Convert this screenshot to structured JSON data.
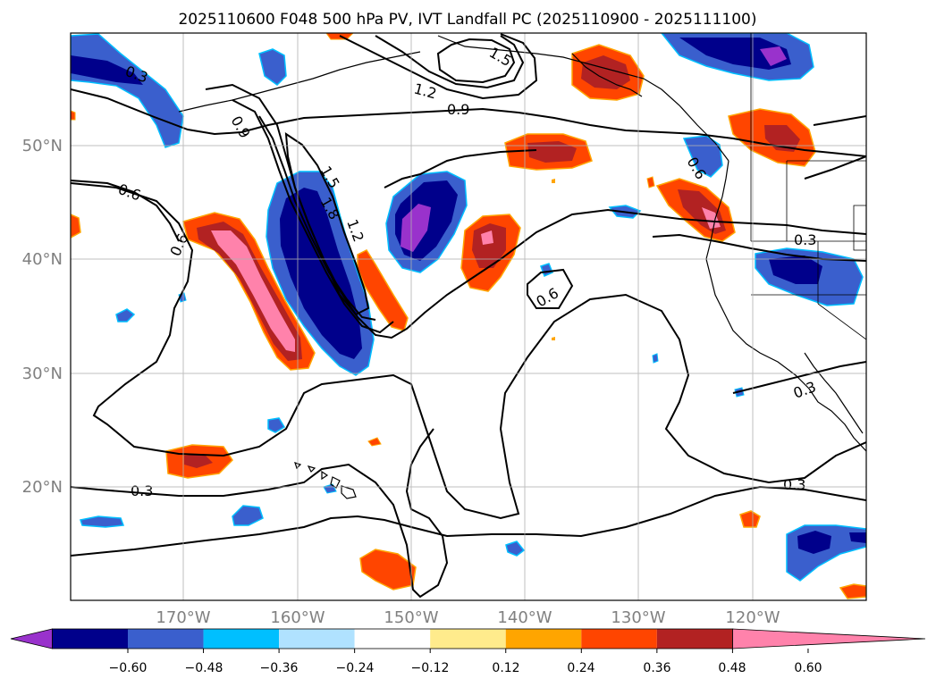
{
  "title": "2025110600 F048 500 hPa PV, IVT Landfall PC (2025110900 - 2025111100)",
  "lon_labels": [
    "170°W",
    "160°W",
    "150°W",
    "140°W",
    "130°W",
    "120°W"
  ],
  "lat_labels": [
    "50°N",
    "40°N",
    "30°N",
    "20°N"
  ],
  "contour_labels": {
    "c03a": "0.3",
    "c06a": "0.6",
    "c09a": "0.9",
    "c06b": "0.6",
    "c15a": "1.5",
    "c18a": "1.8",
    "c12a": "1.2",
    "c12b": "1.2",
    "c15b": "1.5",
    "c09b": "0.9",
    "c06c": "0.6",
    "c03b": "0.3",
    "c03c": "0.3",
    "c03d": "0.3",
    "c03e": "0.3",
    "c06d": "0.6"
  },
  "colorbar": {
    "tick_labels": [
      "−0.60",
      "−0.48",
      "−0.36",
      "−0.24",
      "−0.12",
      "0.12",
      "0.24",
      "0.36",
      "0.48",
      "0.60"
    ],
    "colors": [
      "#9932cc",
      "#00008b",
      "#3a5fcd",
      "#00bfff",
      "#b0e2ff",
      "#ffffff",
      "#ffeb8c",
      "#ffa500",
      "#ff4500",
      "#b22222",
      "#ff82ab"
    ]
  },
  "map_colors": {
    "neg_light": "#00bfff",
    "neg_mid": "#3a5fcd",
    "neg_dark": "#00008b",
    "neg_purple": "#9932cc",
    "pos_yellow": "#ffeb8c",
    "pos_orange": "#ffa500",
    "pos_red": "#ff4500",
    "pos_dark": "#b22222",
    "pos_pink": "#ff82ab",
    "gridline": "#b0b0b0",
    "tick_label": "#808080"
  }
}
